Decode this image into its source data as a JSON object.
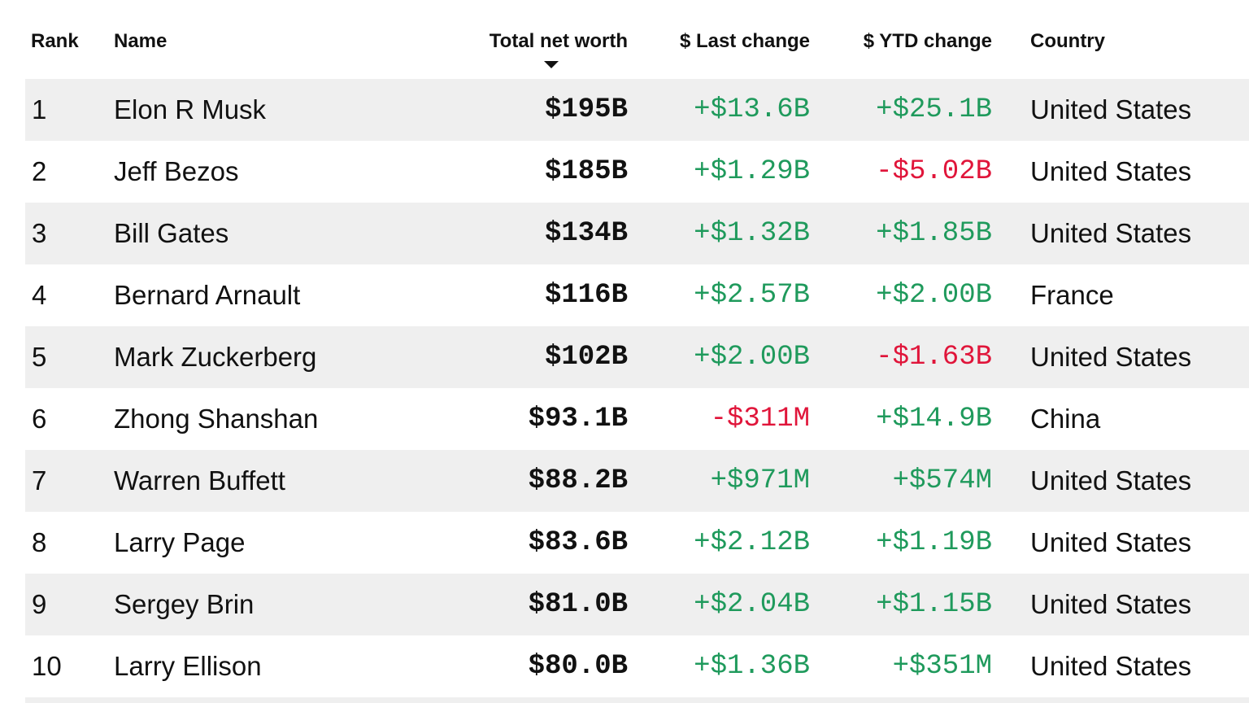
{
  "header": {
    "rank": "Rank",
    "name": "Name",
    "total_net_worth": "Total net worth",
    "last_change": "$ Last change",
    "ytd_change": "$ YTD change",
    "country": "Country",
    "sort_icon": "sort-descending-icon"
  },
  "colors": {
    "positive": "#1f9a5c",
    "negative": "#e0153a",
    "row_stripe": "#efefef"
  },
  "rows": [
    {
      "rank": "1",
      "name": "Elon R Musk",
      "worth": "$195B",
      "last": "+$13.6B",
      "ytd": "+$25.1B",
      "country": "United States"
    },
    {
      "rank": "2",
      "name": "Jeff Bezos",
      "worth": "$185B",
      "last": "+$1.29B",
      "ytd": "-$5.02B",
      "country": "United States"
    },
    {
      "rank": "3",
      "name": "Bill Gates",
      "worth": "$134B",
      "last": "+$1.32B",
      "ytd": "+$1.85B",
      "country": "United States"
    },
    {
      "rank": "4",
      "name": "Bernard Arnault",
      "worth": "$116B",
      "last": "+$2.57B",
      "ytd": "+$2.00B",
      "country": "France"
    },
    {
      "rank": "5",
      "name": "Mark Zuckerberg",
      "worth": "$102B",
      "last": "+$2.00B",
      "ytd": "-$1.63B",
      "country": "United States"
    },
    {
      "rank": "6",
      "name": "Zhong Shanshan",
      "worth": "$93.1B",
      "last": "-$311M",
      "ytd": "+$14.9B",
      "country": "China"
    },
    {
      "rank": "7",
      "name": "Warren Buffett",
      "worth": "$88.2B",
      "last": "+$971M",
      "ytd": "+$574M",
      "country": "United States"
    },
    {
      "rank": "8",
      "name": "Larry Page",
      "worth": "$83.6B",
      "last": "+$2.12B",
      "ytd": "+$1.19B",
      "country": "United States"
    },
    {
      "rank": "9",
      "name": "Sergey Brin",
      "worth": "$81.0B",
      "last": "+$2.04B",
      "ytd": "+$1.15B",
      "country": "United States"
    },
    {
      "rank": "10",
      "name": "Larry Ellison",
      "worth": "$80.0B",
      "last": "+$1.36B",
      "ytd": "+$351M",
      "country": "United States"
    }
  ]
}
